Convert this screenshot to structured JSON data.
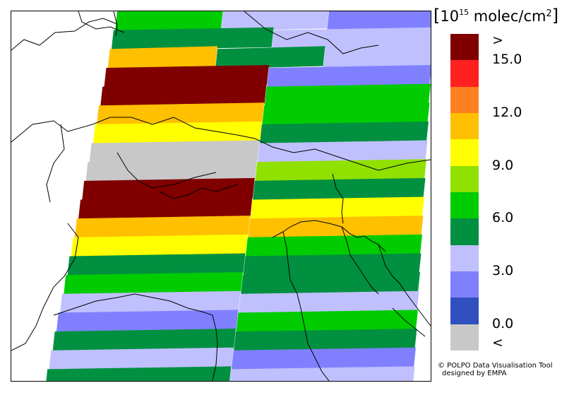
{
  "colorbar": {
    "unit_open": "[",
    "unit_exp_base": "10",
    "unit_exp": "15",
    "unit_mid": "molec/cm",
    "unit_sq": "2",
    "unit_close": "]",
    "top_label": ">",
    "bottom_label": "<",
    "tick_labels": [
      "15.0",
      "12.0",
      "9.0",
      "6.0",
      "3.0",
      "0.0"
    ],
    "colors": [
      "#800000",
      "#ff2020",
      "#ff8020",
      "#ffc000",
      "#ffff00",
      "#90e000",
      "#00cc00",
      "#009040",
      "#c0c0ff",
      "#8080ff",
      "#3050c0",
      "#c8c8c8"
    ]
  },
  "credit": {
    "line1": "© POLPO Data Visualisation Tool",
    "line2": "designed by EMPA"
  },
  "map": {
    "description_free": true,
    "swath_rows": [
      {
        "cells": [
          "#00cc00",
          "#c0c0ff",
          "#8080ff"
        ]
      },
      {
        "cells": [
          "#009040",
          "#c0c0ff"
        ]
      },
      {
        "cells": [
          "#ffc000",
          "#009040",
          "#c0c0ff"
        ]
      },
      {
        "cells": [
          "#800000",
          "#8080ff"
        ]
      },
      {
        "cells": [
          "#800000",
          "#00cc00"
        ]
      },
      {
        "cells": [
          "#ffc000",
          "#00cc00"
        ]
      },
      {
        "cells": [
          "#ffff00",
          "#009040"
        ]
      },
      {
        "cells": [
          "#c8c8c8",
          "#c0c0ff"
        ]
      },
      {
        "cells": [
          "#c8c8c8",
          "#90e000"
        ]
      },
      {
        "cells": [
          "#800000",
          "#009040"
        ]
      },
      {
        "cells": [
          "#800000",
          "#ffff00"
        ]
      },
      {
        "cells": [
          "#ffc000",
          "#ffc000"
        ]
      },
      {
        "cells": [
          "#ffff00",
          "#00cc00"
        ]
      },
      {
        "cells": [
          "#009040",
          "#009040"
        ]
      },
      {
        "cells": [
          "#00cc00",
          "#009040"
        ]
      },
      {
        "cells": [
          "#c0c0ff",
          "#c0c0ff"
        ]
      },
      {
        "cells": [
          "#8080ff",
          "#00cc00"
        ]
      },
      {
        "cells": [
          "#009040",
          "#009040"
        ]
      },
      {
        "cells": [
          "#c0c0ff",
          "#8080ff"
        ]
      },
      {
        "cells": [
          "#009040",
          "#c0c0ff"
        ]
      }
    ]
  }
}
